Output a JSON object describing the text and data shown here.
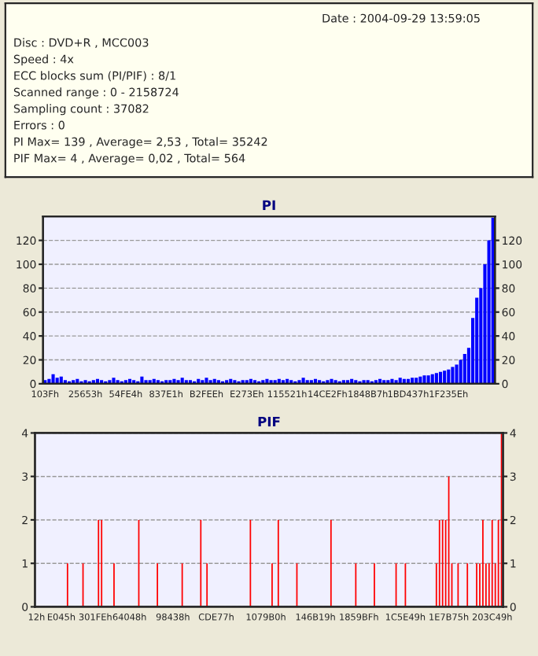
{
  "chart_data": [
    {
      "type": "other",
      "annotations": [
        "Date : 2004-09-29 13:59:05",
        "Disc : DVD+R , MCC003",
        "Speed : 4x",
        "ECC blocks sum (PI/PIF) : 8/1",
        "Scanned range : 0 - 2158724",
        "Sampling count : 37082",
        "Errors : 0",
        "PI Max= 139 , Average= 2,53 , Total= 35242",
        "PIF Max= 4 , Average= 0,02 , Total= 564"
      ]
    },
    {
      "type": "bar",
      "title": "PI",
      "ylim": [
        0,
        140
      ],
      "y2lim": [
        0,
        140
      ],
      "yticks": [
        0,
        20,
        40,
        60,
        80,
        100,
        120
      ],
      "y2ticks": [
        0,
        20,
        40,
        60,
        80,
        100,
        120
      ],
      "grid": "y",
      "categories": [
        "103Fh",
        null,
        null,
        null,
        null,
        null,
        null,
        null,
        null,
        null,
        "25653h",
        null,
        null,
        null,
        null,
        null,
        null,
        null,
        null,
        null,
        "54FE4h",
        null,
        null,
        null,
        null,
        null,
        null,
        null,
        null,
        null,
        "837E1h",
        null,
        null,
        null,
        null,
        null,
        null,
        null,
        null,
        null,
        "B2FEEh",
        null,
        null,
        null,
        null,
        null,
        null,
        null,
        null,
        null,
        "E273Eh",
        null,
        null,
        null,
        null,
        null,
        null,
        null,
        null,
        null,
        "115521h",
        null,
        null,
        null,
        null,
        null,
        null,
        null,
        null,
        null,
        "14CE2Fh",
        null,
        null,
        null,
        null,
        null,
        null,
        null,
        null,
        null,
        "1848B7h",
        null,
        null,
        null,
        null,
        null,
        null,
        null,
        null,
        null,
        "1BD437h",
        null,
        null,
        null,
        null,
        null,
        null,
        null,
        null,
        null,
        "1F235Eh",
        null,
        null,
        null,
        null,
        null,
        null,
        null,
        null,
        null,
        null,
        null
      ],
      "series": [
        {
          "color": "#0000ff",
          "values": [
            3,
            4,
            8,
            5,
            6,
            3,
            2,
            3,
            4,
            2,
            3,
            2,
            3,
            4,
            3,
            2,
            3,
            5,
            3,
            2,
            3,
            4,
            3,
            2,
            6,
            3,
            3,
            4,
            3,
            2,
            3,
            3,
            4,
            3,
            5,
            3,
            3,
            2,
            4,
            3,
            5,
            3,
            4,
            3,
            2,
            3,
            4,
            3,
            2,
            3,
            3,
            4,
            3,
            2,
            3,
            4,
            3,
            3,
            4,
            3,
            4,
            3,
            2,
            3,
            5,
            3,
            3,
            4,
            3,
            2,
            3,
            4,
            3,
            2,
            3,
            3,
            4,
            3,
            2,
            3,
            3,
            2,
            3,
            4,
            3,
            3,
            4,
            3,
            5,
            4,
            4,
            5,
            5,
            6,
            7,
            7,
            8,
            9,
            10,
            11,
            12,
            14,
            16,
            20,
            25,
            30,
            55,
            72,
            80,
            100,
            120,
            139
          ]
        }
      ]
    },
    {
      "type": "bar",
      "title": "PIF",
      "ylim": [
        0,
        4
      ],
      "y2lim": [
        0,
        4
      ],
      "yticks": [
        0,
        1,
        2,
        3,
        4
      ],
      "y2ticks": [
        0,
        1,
        2,
        3,
        4
      ],
      "grid": "y",
      "categories": [
        "12h",
        null,
        null,
        null,
        null,
        null,
        null,
        null,
        "E045h",
        null,
        null,
        null,
        null,
        null,
        null,
        null,
        null,
        null,
        null,
        "301FEh",
        null,
        null,
        null,
        null,
        null,
        null,
        null,
        null,
        null,
        null,
        "64048h",
        null,
        null,
        null,
        null,
        null,
        null,
        null,
        null,
        null,
        null,
        null,
        null,
        null,
        "98438h",
        null,
        null,
        null,
        null,
        null,
        null,
        null,
        null,
        null,
        null,
        null,
        null,
        null,
        "CDE77h",
        null,
        null,
        null,
        null,
        null,
        null,
        null,
        null,
        null,
        null,
        null,
        null,
        null,
        null,
        null,
        "1079B0h",
        null,
        null,
        null,
        null,
        null,
        null,
        null,
        null,
        null,
        null,
        null,
        null,
        null,
        null,
        null,
        "146B19h",
        null,
        null,
        null,
        null,
        null,
        null,
        null,
        null,
        null,
        null,
        null,
        null,
        null,
        "1859BFh",
        null,
        null,
        null,
        null,
        null,
        null,
        null,
        null,
        null,
        null,
        null,
        null,
        null,
        null,
        "1C5E49h",
        null,
        null,
        null,
        null,
        null,
        null,
        null,
        null,
        null,
        null,
        null,
        null,
        null,
        "1E7B75h",
        null,
        null,
        null,
        null,
        null,
        null,
        null,
        null,
        null,
        null,
        null,
        null,
        null,
        "203C49h",
        null,
        null,
        null
      ],
      "series": [
        {
          "color": "#ff0000",
          "values": [
            0,
            0,
            0,
            0,
            0,
            0,
            0,
            0,
            0,
            0,
            1,
            0,
            0,
            0,
            0,
            1,
            0,
            0,
            0,
            0,
            2,
            2,
            0,
            0,
            0,
            1,
            0,
            0,
            0,
            0,
            0,
            0,
            0,
            2,
            0,
            0,
            0,
            0,
            0,
            1,
            0,
            0,
            0,
            0,
            0,
            0,
            0,
            1,
            0,
            0,
            0,
            0,
            0,
            2,
            0,
            1,
            0,
            0,
            0,
            0,
            0,
            0,
            0,
            0,
            0,
            0,
            0,
            0,
            0,
            2,
            0,
            0,
            0,
            0,
            0,
            0,
            1,
            0,
            2,
            0,
            0,
            0,
            0,
            0,
            1,
            0,
            0,
            0,
            0,
            0,
            0,
            0,
            0,
            0,
            0,
            2,
            0,
            0,
            0,
            0,
            0,
            0,
            0,
            1,
            0,
            0,
            0,
            0,
            0,
            1,
            0,
            0,
            0,
            0,
            0,
            0,
            1,
            0,
            0,
            1,
            0,
            0,
            0,
            0,
            0,
            0,
            0,
            0,
            0,
            1,
            2,
            2,
            2,
            3,
            1,
            0,
            1,
            0,
            0,
            1,
            0,
            0,
            1,
            1,
            2,
            1,
            1,
            2,
            1,
            2,
            4
          ]
        }
      ]
    }
  ]
}
